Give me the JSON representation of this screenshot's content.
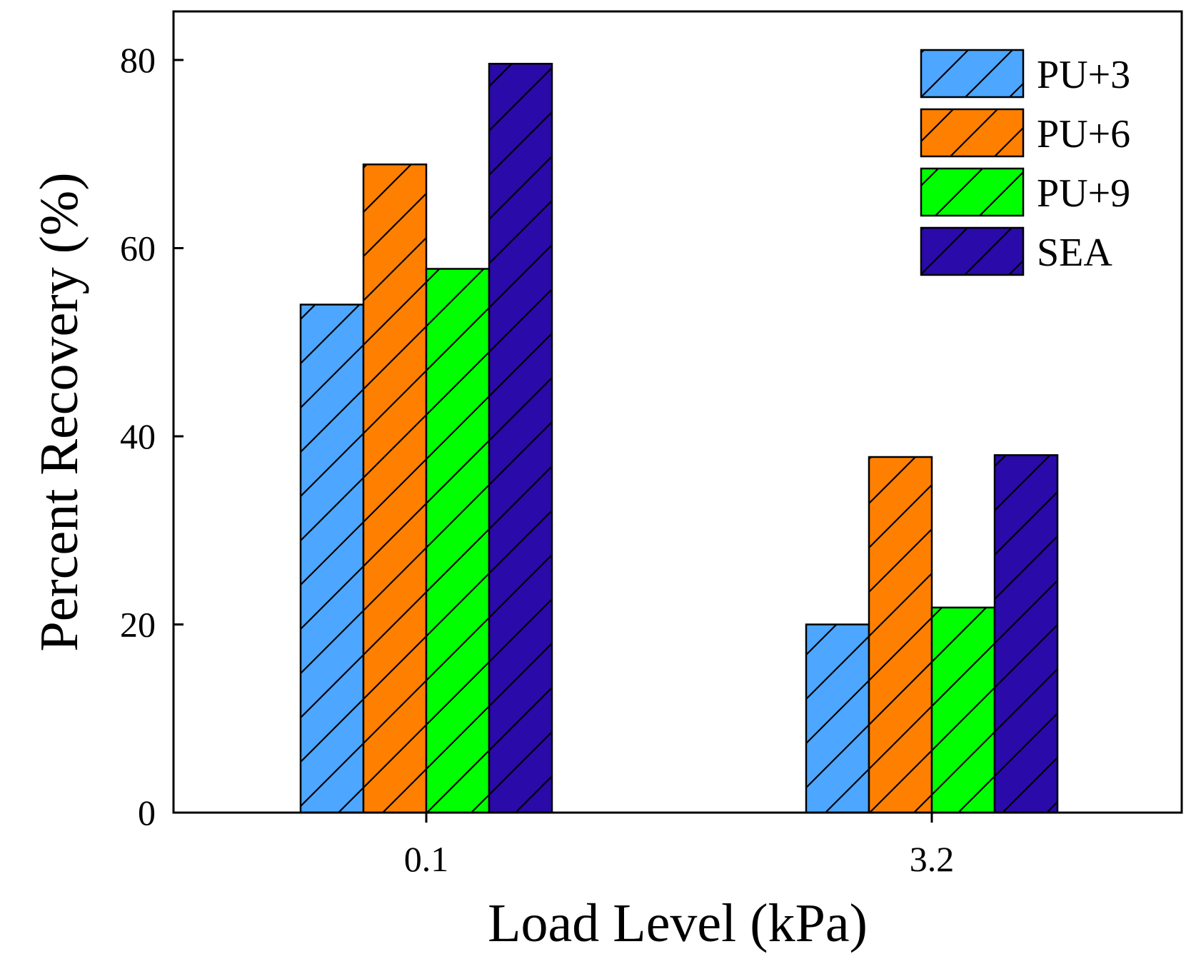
{
  "chart_data": {
    "type": "bar",
    "title": "",
    "xlabel": "Load Level (kPa)",
    "ylabel": "Percent Recovery (%)",
    "categories": [
      "0.1",
      "3.2"
    ],
    "ylim": [
      0,
      85
    ],
    "yticks": [
      0,
      20,
      40,
      60,
      80
    ],
    "yticks_labels": [
      "0",
      "20",
      "40",
      "60",
      "80"
    ],
    "legend_position": "top-right",
    "grid": false,
    "hatch": "diagonal",
    "series": [
      {
        "name": "PU+3",
        "color": "#4da6ff",
        "values": [
          54.0,
          20.0
        ]
      },
      {
        "name": "PU+6",
        "color": "#ff8000",
        "values": [
          68.9,
          37.8
        ]
      },
      {
        "name": "PU+9",
        "color": "#00ff00",
        "values": [
          57.8,
          21.8
        ]
      },
      {
        "name": "SEA",
        "color": "#2a0aa8",
        "values": [
          79.6,
          38.0
        ]
      }
    ]
  }
}
